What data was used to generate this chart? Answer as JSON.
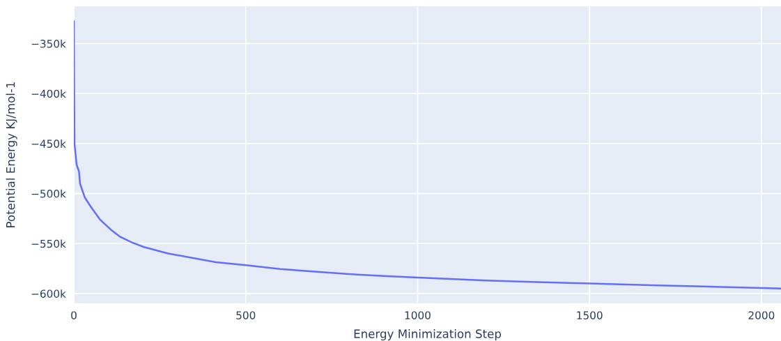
{
  "chart_data": {
    "type": "line",
    "xlabel": "Energy Minimization Step",
    "ylabel": "Potential Energy KJ/mol-1",
    "series": [
      {
        "color": "#636efa",
        "x": [
          0,
          1,
          2,
          8,
          15,
          18,
          32,
          49,
          76,
          109,
          136,
          170,
          204,
          272,
          413,
          500,
          600,
          700,
          800,
          900,
          1000,
          1200,
          1500,
          1700,
          2000,
          2057
        ],
        "values": [
          -327700,
          -399000,
          -450500,
          -471000,
          -478000,
          -490000,
          -504000,
          -513000,
          -526000,
          -536500,
          -543500,
          -549000,
          -553500,
          -559800,
          -568600,
          -571600,
          -575500,
          -578000,
          -580500,
          -582500,
          -584000,
          -587000,
          -590000,
          -591800,
          -594500,
          -595000
        ]
      }
    ],
    "xlim": [
      0,
      2057
    ],
    "ylim": [
      -609800,
      -312700
    ],
    "xticks": [
      0,
      500,
      1000,
      1500,
      2000
    ],
    "yticks": [
      {
        "value": -600000,
        "label": "−600k"
      },
      {
        "value": -550000,
        "label": "−550k"
      },
      {
        "value": -500000,
        "label": "−500k"
      },
      {
        "value": -450000,
        "label": "−450k"
      },
      {
        "value": -400000,
        "label": "−400k"
      },
      {
        "value": -350000,
        "label": "−350k"
      }
    ],
    "grid": true,
    "legend": false,
    "marker": "none",
    "line_style": "solid"
  }
}
